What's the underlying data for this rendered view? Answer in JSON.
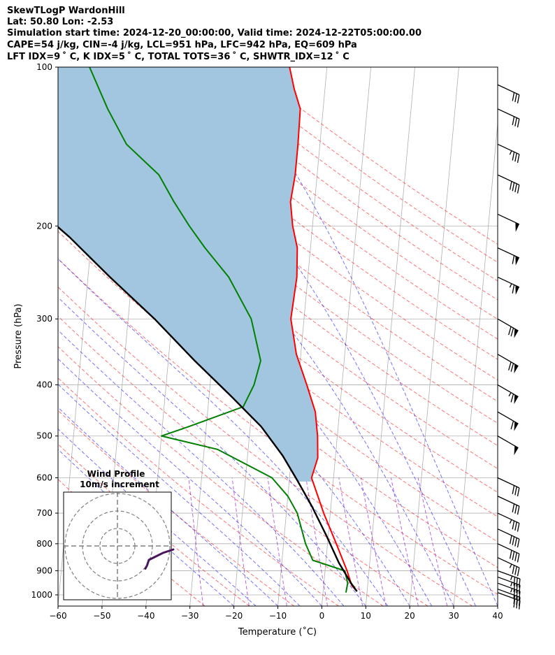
{
  "header": {
    "line1": "SkewTLogP WardonHill",
    "line2": "Lat: 50.80   Lon: -2.53",
    "line3": "Simulation start time: 2024-12-20_00:00:00, Valid time: 2024-12-22T05:00:00.00",
    "line4": "CAPE=54 j/kg, CIN=-4 j/kg, LCL=951 hPa, LFC=942 hPa, EQ=609 hPa",
    "line5": "LFT IDX=9 ˚ C, K IDX=5 ˚ C, TOTAL TOTS=36 ˚ C, SHWTR_IDX=12 ˚ C"
  },
  "chart_data": {
    "type": "line",
    "subtype": "skew-T log-P diagram",
    "xlabel": "Temperature (˚C)",
    "ylabel": "Pressure (hPa)",
    "xlim": [
      -60,
      40
    ],
    "ylim": [
      1050,
      100
    ],
    "y_scale": "log",
    "x_ticks": [
      -60,
      -50,
      -40,
      -30,
      -20,
      -10,
      0,
      10,
      20,
      30,
      40
    ],
    "x_tick_labels": [
      "−60",
      "−50",
      "−40",
      "−30",
      "−20",
      "−10",
      "0",
      "10",
      "20",
      "30",
      "40"
    ],
    "y_ticks": [
      1000,
      900,
      800,
      700,
      600,
      500,
      400,
      300,
      200,
      100
    ],
    "y_tick_labels": [
      "1000",
      "900",
      "800",
      "700",
      "600",
      "500",
      "400",
      "300",
      "200",
      "100"
    ],
    "grid": true,
    "colors": {
      "temperature": "#ff0000",
      "dewpoint": "#008000",
      "parcel": "#000000",
      "cape_fill": "#a2c6df",
      "dry_adiabat": "#ff0000",
      "moist_adiabat": "#0000ff",
      "mixing_ratio": "#8b00c8",
      "isotherm": "#999999",
      "hodograph": "#4b1660"
    },
    "series": [
      {
        "key": "temperature",
        "points": [
          [
            7.7,
            985
          ],
          [
            6.4,
            960
          ],
          [
            5,
            900
          ],
          [
            2,
            800
          ],
          [
            -1.5,
            700
          ],
          [
            -5,
            600
          ],
          [
            -4,
            550
          ],
          [
            -4.5,
            500
          ],
          [
            -5.5,
            450
          ],
          [
            -8,
            400
          ],
          [
            -11,
            350
          ],
          [
            -13,
            300
          ],
          [
            -12.5,
            250
          ],
          [
            -13,
            220
          ],
          [
            -14.5,
            200
          ],
          [
            -15.5,
            180
          ],
          [
            -15,
            160
          ],
          [
            -15,
            140
          ],
          [
            -15.2,
            120
          ],
          [
            -17,
            110
          ],
          [
            -18.5,
            100
          ]
        ]
      },
      {
        "key": "dewpoint",
        "points": [
          [
            5.2,
            990
          ],
          [
            5.4,
            950
          ],
          [
            4.5,
            900
          ],
          [
            -3,
            860
          ],
          [
            -5,
            800
          ],
          [
            -7.5,
            700
          ],
          [
            -10,
            650
          ],
          [
            -14,
            600
          ],
          [
            -27,
            530
          ],
          [
            -40,
            500
          ],
          [
            -34,
            480
          ],
          [
            -22,
            440
          ],
          [
            -20,
            400
          ],
          [
            -19,
            360
          ],
          [
            -22,
            300
          ],
          [
            -28,
            250
          ],
          [
            -34,
            220
          ],
          [
            -38,
            200
          ],
          [
            -42,
            180
          ],
          [
            -46,
            160
          ],
          [
            -54,
            140
          ],
          [
            -59,
            120
          ],
          [
            -64,
            100
          ]
        ]
      },
      {
        "key": "parcel",
        "points": [
          [
            7.7,
            985
          ],
          [
            6.2,
            951
          ],
          [
            3,
            870
          ],
          [
            -0.5,
            770
          ],
          [
            -4.3,
            680
          ],
          [
            -8,
            610
          ],
          [
            -12,
            545
          ],
          [
            -17.5,
            480
          ],
          [
            -25,
            420
          ],
          [
            -34,
            360
          ],
          [
            -44,
            300
          ],
          [
            -55,
            250
          ],
          [
            -65,
            210
          ],
          [
            -75,
            180
          ],
          [
            -86,
            150
          ],
          [
            -97,
            128
          ],
          [
            -106,
            100
          ]
        ]
      }
    ],
    "wind_barbs": [
      {
        "pressure": 990,
        "speed_kt": 30,
        "direction_deg": 290
      },
      {
        "pressure": 975,
        "speed_kt": 30,
        "direction_deg": 290
      },
      {
        "pressure": 950,
        "speed_kt": 35,
        "direction_deg": 290
      },
      {
        "pressure": 925,
        "speed_kt": 35,
        "direction_deg": 290
      },
      {
        "pressure": 900,
        "speed_kt": 35,
        "direction_deg": 290
      },
      {
        "pressure": 850,
        "speed_kt": 35,
        "direction_deg": 295
      },
      {
        "pressure": 800,
        "speed_kt": 40,
        "direction_deg": 295
      },
      {
        "pressure": 750,
        "speed_kt": 40,
        "direction_deg": 295
      },
      {
        "pressure": 700,
        "speed_kt": 35,
        "direction_deg": 295
      },
      {
        "pressure": 650,
        "speed_kt": 30,
        "direction_deg": 295
      },
      {
        "pressure": 600,
        "speed_kt": 30,
        "direction_deg": 295
      },
      {
        "pressure": 500,
        "speed_kt": 50,
        "direction_deg": 300
      },
      {
        "pressure": 450,
        "speed_kt": 60,
        "direction_deg": 300
      },
      {
        "pressure": 400,
        "speed_kt": 65,
        "direction_deg": 300
      },
      {
        "pressure": 350,
        "speed_kt": 70,
        "direction_deg": 300
      },
      {
        "pressure": 300,
        "speed_kt": 70,
        "direction_deg": 300
      },
      {
        "pressure": 250,
        "speed_kt": 65,
        "direction_deg": 295
      },
      {
        "pressure": 220,
        "speed_kt": 60,
        "direction_deg": 295
      },
      {
        "pressure": 190,
        "speed_kt": 50,
        "direction_deg": 295
      },
      {
        "pressure": 160,
        "speed_kt": 40,
        "direction_deg": 295
      },
      {
        "pressure": 140,
        "speed_kt": 35,
        "direction_deg": 295
      },
      {
        "pressure": 120,
        "speed_kt": 30,
        "direction_deg": 295
      },
      {
        "pressure": 108,
        "speed_kt": 30,
        "direction_deg": 295
      }
    ],
    "hodograph": {
      "title": "Wind Profile",
      "subtitle": "10m/s increment",
      "ring_spacing_ms": 10,
      "points": [
        [
          -16,
          13
        ],
        [
          -17,
          11
        ],
        [
          -18,
          8
        ],
        [
          -22,
          6
        ],
        [
          -26,
          4
        ],
        [
          -29,
          3
        ],
        [
          -32,
          2
        ]
      ]
    }
  }
}
